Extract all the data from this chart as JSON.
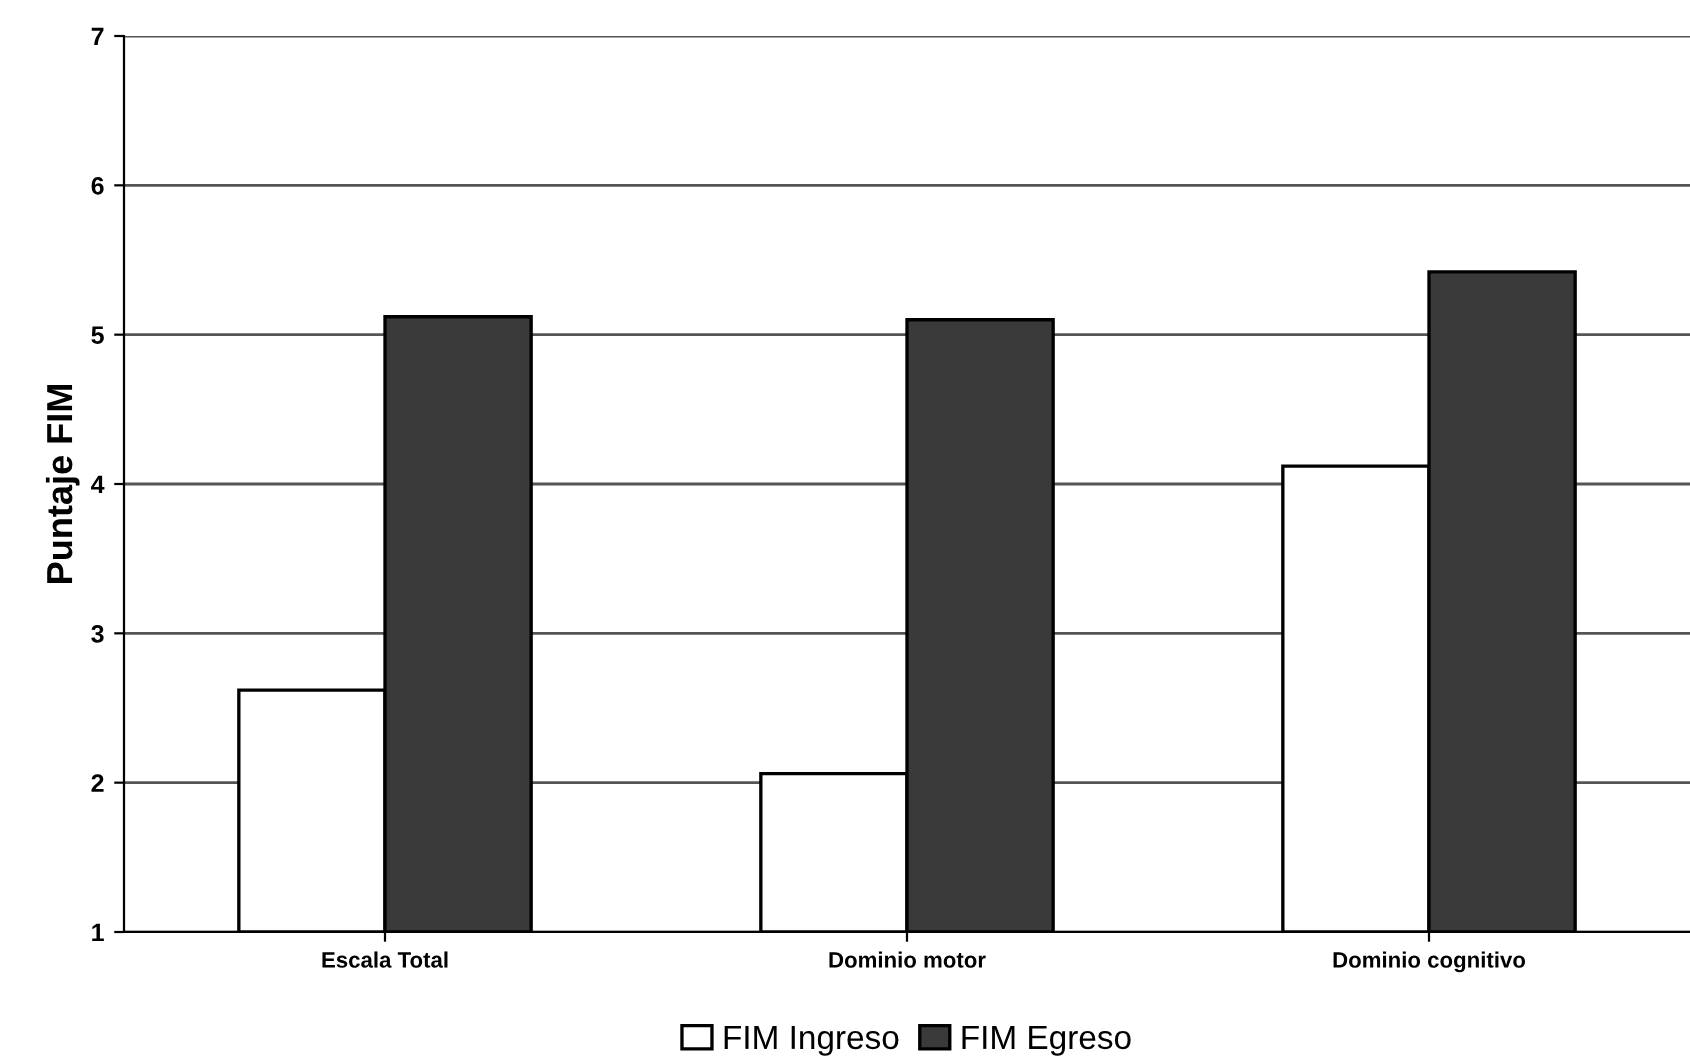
{
  "chart_data": {
    "type": "bar",
    "ylabel": "Puntaje FIM",
    "categories": [
      "Escala Total",
      "Dominio motor",
      "Dominio cognitivo"
    ],
    "series": [
      {
        "name": "FIM Ingreso",
        "color": "#ffffff",
        "values": [
          2.62,
          2.06,
          4.12
        ]
      },
      {
        "name": "FIM Egreso",
        "color": "#3a3a3a",
        "values": [
          5.12,
          5.1,
          5.42
        ]
      }
    ],
    "ylim": [
      1,
      7
    ],
    "yticks": [
      1,
      2,
      3,
      4,
      5,
      6,
      7
    ],
    "grid": "y",
    "legend": "bottom"
  }
}
